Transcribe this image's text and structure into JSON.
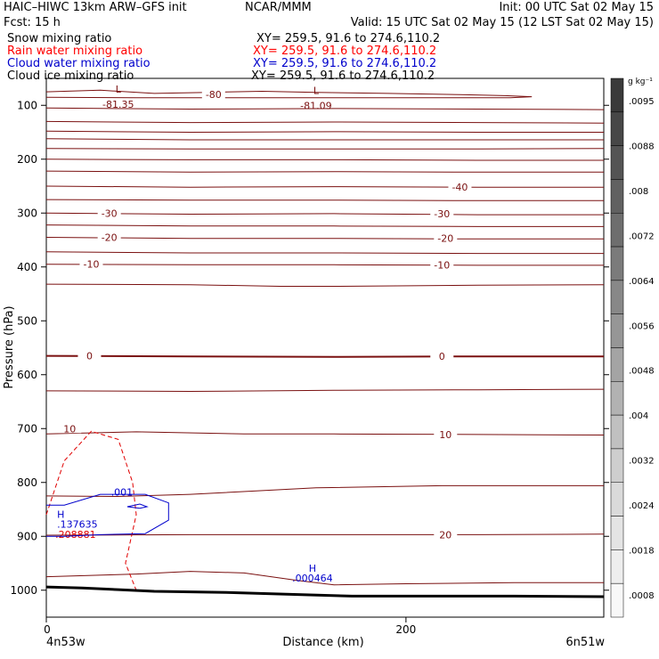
{
  "header": {
    "model": "HAIC–HIWC 13km ARW–GFS init",
    "org": "NCAR/MMM",
    "init": "Init: 00 UTC Sat 02 May 15",
    "fcst": "Fcst:    15 h",
    "valid": "Valid: 15 UTC Sat 02 May 15 (12 LST Sat 02 May 15)"
  },
  "fields": [
    {
      "name": "Snow mixing ratio",
      "xy": "XY= 259.5, 91.6 to 274.6,110.2",
      "color": "#000000"
    },
    {
      "name": "Rain water mixing ratio",
      "xy": "XY= 259.5, 91.6 to 274.6,110.2",
      "color": "#ff0000"
    },
    {
      "name": "Cloud water mixing ratio",
      "xy": "XY= 259.5, 91.6 to 274.6,110.2",
      "color": "#0000cc"
    },
    {
      "name": "Cloud ice mixing ratio",
      "xy": "XY= 259.5, 91.6 to 274.6,110.2",
      "color": "#000000"
    }
  ],
  "chart_data": {
    "type": "line",
    "xlabel": "Distance (km)",
    "ylabel": "Pressure (hPa)",
    "xlim": [
      0,
      310
    ],
    "ylim": [
      50,
      1050
    ],
    "y_log": false,
    "x_ticks": [
      0,
      200
    ],
    "y_ticks": [
      100,
      200,
      300,
      400,
      500,
      600,
      700,
      800,
      900,
      1000
    ],
    "x_end_labels": {
      "left": "4n53w",
      "right": "6n51w"
    },
    "temperature_contours": [
      {
        "level": -80,
        "labels": [
          "-80"
        ],
        "points": [
          [
            0,
            75
          ],
          [
            30,
            72
          ],
          [
            60,
            78
          ],
          [
            90,
            76
          ],
          [
            120,
            74
          ],
          [
            150,
            76
          ],
          [
            190,
            78
          ],
          [
            230,
            80
          ],
          [
            255,
            82
          ],
          [
            270,
            84
          ],
          [
            258,
            86
          ],
          [
            230,
            86
          ],
          [
            190,
            86
          ],
          [
            150,
            86
          ],
          [
            100,
            86
          ],
          [
            50,
            86
          ],
          [
            0,
            85
          ]
        ]
      },
      {
        "level": -75,
        "labels": [],
        "points": [
          [
            0,
            105
          ],
          [
            80,
            107
          ],
          [
            160,
            106
          ],
          [
            240,
            107
          ],
          [
            310,
            108
          ]
        ]
      },
      {
        "level": -70,
        "labels": [],
        "points": [
          [
            0,
            130
          ],
          [
            80,
            132
          ],
          [
            160,
            131
          ],
          [
            240,
            132
          ],
          [
            310,
            133
          ]
        ]
      },
      {
        "level": -65,
        "labels": [],
        "points": [
          [
            0,
            148
          ],
          [
            80,
            150
          ],
          [
            160,
            149
          ],
          [
            240,
            150
          ],
          [
            310,
            150
          ]
        ]
      },
      {
        "level": -60,
        "labels": [],
        "points": [
          [
            0,
            162
          ],
          [
            80,
            164
          ],
          [
            160,
            164
          ],
          [
            240,
            164
          ],
          [
            310,
            164
          ]
        ]
      },
      {
        "level": -55,
        "labels": [],
        "points": [
          [
            0,
            180
          ],
          [
            80,
            181
          ],
          [
            160,
            181
          ],
          [
            240,
            181
          ],
          [
            310,
            180
          ]
        ]
      },
      {
        "level": -50,
        "labels": [],
        "points": [
          [
            0,
            200
          ],
          [
            80,
            201
          ],
          [
            160,
            201
          ],
          [
            240,
            202
          ],
          [
            310,
            202
          ]
        ]
      },
      {
        "level": -45,
        "labels": [],
        "points": [
          [
            0,
            222
          ],
          [
            80,
            224
          ],
          [
            160,
            223
          ],
          [
            240,
            224
          ],
          [
            310,
            224
          ]
        ]
      },
      {
        "level": -40,
        "labels": [
          "-40"
        ],
        "points": [
          [
            0,
            250
          ],
          [
            80,
            252
          ],
          [
            160,
            251
          ],
          [
            240,
            252
          ],
          [
            310,
            252
          ]
        ]
      },
      {
        "level": -35,
        "labels": [],
        "points": [
          [
            0,
            275
          ],
          [
            80,
            276
          ],
          [
            160,
            276
          ],
          [
            240,
            277
          ],
          [
            310,
            277
          ]
        ]
      },
      {
        "level": -30,
        "labels": [
          "-30"
        ],
        "points": [
          [
            0,
            300
          ],
          [
            80,
            302
          ],
          [
            160,
            301
          ],
          [
            240,
            303
          ],
          [
            310,
            303
          ]
        ]
      },
      {
        "level": -25,
        "labels": [],
        "points": [
          [
            0,
            322
          ],
          [
            80,
            324
          ],
          [
            160,
            324
          ],
          [
            240,
            325
          ],
          [
            310,
            325
          ]
        ]
      },
      {
        "level": -20,
        "labels": [
          "-20"
        ],
        "points": [
          [
            0,
            345
          ],
          [
            80,
            347
          ],
          [
            160,
            347
          ],
          [
            240,
            348
          ],
          [
            310,
            348
          ]
        ]
      },
      {
        "level": -15,
        "labels": [],
        "points": [
          [
            0,
            372
          ],
          [
            80,
            374
          ],
          [
            160,
            374
          ],
          [
            240,
            375
          ],
          [
            310,
            375
          ]
        ]
      },
      {
        "level": -10,
        "labels": [
          "-10"
        ],
        "points": [
          [
            0,
            395
          ],
          [
            80,
            396
          ],
          [
            160,
            396
          ],
          [
            240,
            397
          ],
          [
            310,
            397
          ]
        ]
      },
      {
        "level": -5,
        "labels": [],
        "points": [
          [
            0,
            432
          ],
          [
            80,
            433
          ],
          [
            130,
            436
          ],
          [
            160,
            436
          ],
          [
            240,
            434
          ],
          [
            310,
            433
          ]
        ]
      },
      {
        "level": 0,
        "labels": [
          "0"
        ],
        "points": [
          [
            0,
            565
          ],
          [
            80,
            566
          ],
          [
            160,
            567
          ],
          [
            240,
            566
          ],
          [
            310,
            566
          ]
        ]
      },
      {
        "level": 5,
        "labels": [],
        "points": [
          [
            0,
            630
          ],
          [
            80,
            631
          ],
          [
            160,
            629
          ],
          [
            240,
            628
          ],
          [
            310,
            627
          ]
        ]
      },
      {
        "level": 10,
        "labels": [
          "10"
        ],
        "points": [
          [
            0,
            710
          ],
          [
            50,
            706
          ],
          [
            110,
            710
          ],
          [
            160,
            710
          ],
          [
            240,
            711
          ],
          [
            310,
            712
          ]
        ]
      },
      {
        "level": 15,
        "labels": [],
        "points": [
          [
            0,
            825
          ],
          [
            40,
            826
          ],
          [
            80,
            822
          ],
          [
            150,
            810
          ],
          [
            220,
            806
          ],
          [
            310,
            806
          ]
        ]
      },
      {
        "level": 20,
        "labels": [
          "20"
        ],
        "points": [
          [
            0,
            898
          ],
          [
            80,
            897
          ],
          [
            160,
            897
          ],
          [
            240,
            897
          ],
          [
            310,
            896
          ]
        ]
      },
      {
        "level": 25,
        "labels": [],
        "points": [
          [
            0,
            975
          ],
          [
            50,
            970
          ],
          [
            80,
            965
          ],
          [
            110,
            968
          ],
          [
            140,
            982
          ],
          [
            160,
            990
          ],
          [
            200,
            988
          ],
          [
            260,
            986
          ],
          [
            310,
            986
          ]
        ]
      }
    ],
    "rain_water": {
      "outer": [
        [
          0,
          860
        ],
        [
          10,
          760
        ],
        [
          25,
          705
        ],
        [
          40,
          720
        ],
        [
          48,
          800
        ],
        [
          50,
          860
        ],
        [
          44,
          950
        ],
        [
          50,
          1000
        ]
      ],
      "max_label": "H",
      "max_value": ".208881",
      "contour_label": "10"
    },
    "cloud_water": {
      "outer": [
        [
          0,
          842
        ],
        [
          10,
          842
        ],
        [
          30,
          822
        ],
        [
          55,
          822
        ],
        [
          68,
          838
        ],
        [
          68,
          870
        ],
        [
          55,
          895
        ],
        [
          30,
          897
        ],
        [
          10,
          900
        ],
        [
          0,
          900
        ]
      ],
      "inner": [
        [
          45,
          845
        ],
        [
          52,
          840
        ],
        [
          56,
          845
        ],
        [
          52,
          848
        ],
        [
          45,
          845
        ]
      ],
      "contour_label": ".001",
      "max_label": "H",
      "max_value": ".137635"
    },
    "secondary_max": {
      "label": "H",
      "value": ".000464"
    },
    "lows": [
      {
        "label": "L",
        "value": "-81.35"
      },
      {
        "label": "L",
        "value": "-81.09"
      }
    ],
    "ground": [
      [
        0,
        994
      ],
      [
        20,
        996
      ],
      [
        40,
        999
      ],
      [
        60,
        1002
      ],
      [
        100,
        1004
      ],
      [
        140,
        1008
      ],
      [
        170,
        1011
      ],
      [
        210,
        1011
      ],
      [
        260,
        1011
      ],
      [
        310,
        1012
      ]
    ],
    "colorbar": {
      "unit": "g kg⁻¹",
      "labels": [
        ".0095",
        ".0088",
        ".008",
        ".0072",
        ".0064",
        ".0056",
        ".0048",
        ".004",
        ".0032",
        ".0024",
        ".0018",
        ".0008"
      ],
      "colors": [
        "#3a3a3a",
        "#474747",
        "#545454",
        "#616161",
        "#6e6e6e",
        "#7b7b7b",
        "#888888",
        "#969696",
        "#a4a4a4",
        "#b2b2b2",
        "#c0c0c0",
        "#cecece",
        "#dadada",
        "#e4e4e4",
        "#eeeeee",
        "#f8f8f8"
      ]
    }
  }
}
